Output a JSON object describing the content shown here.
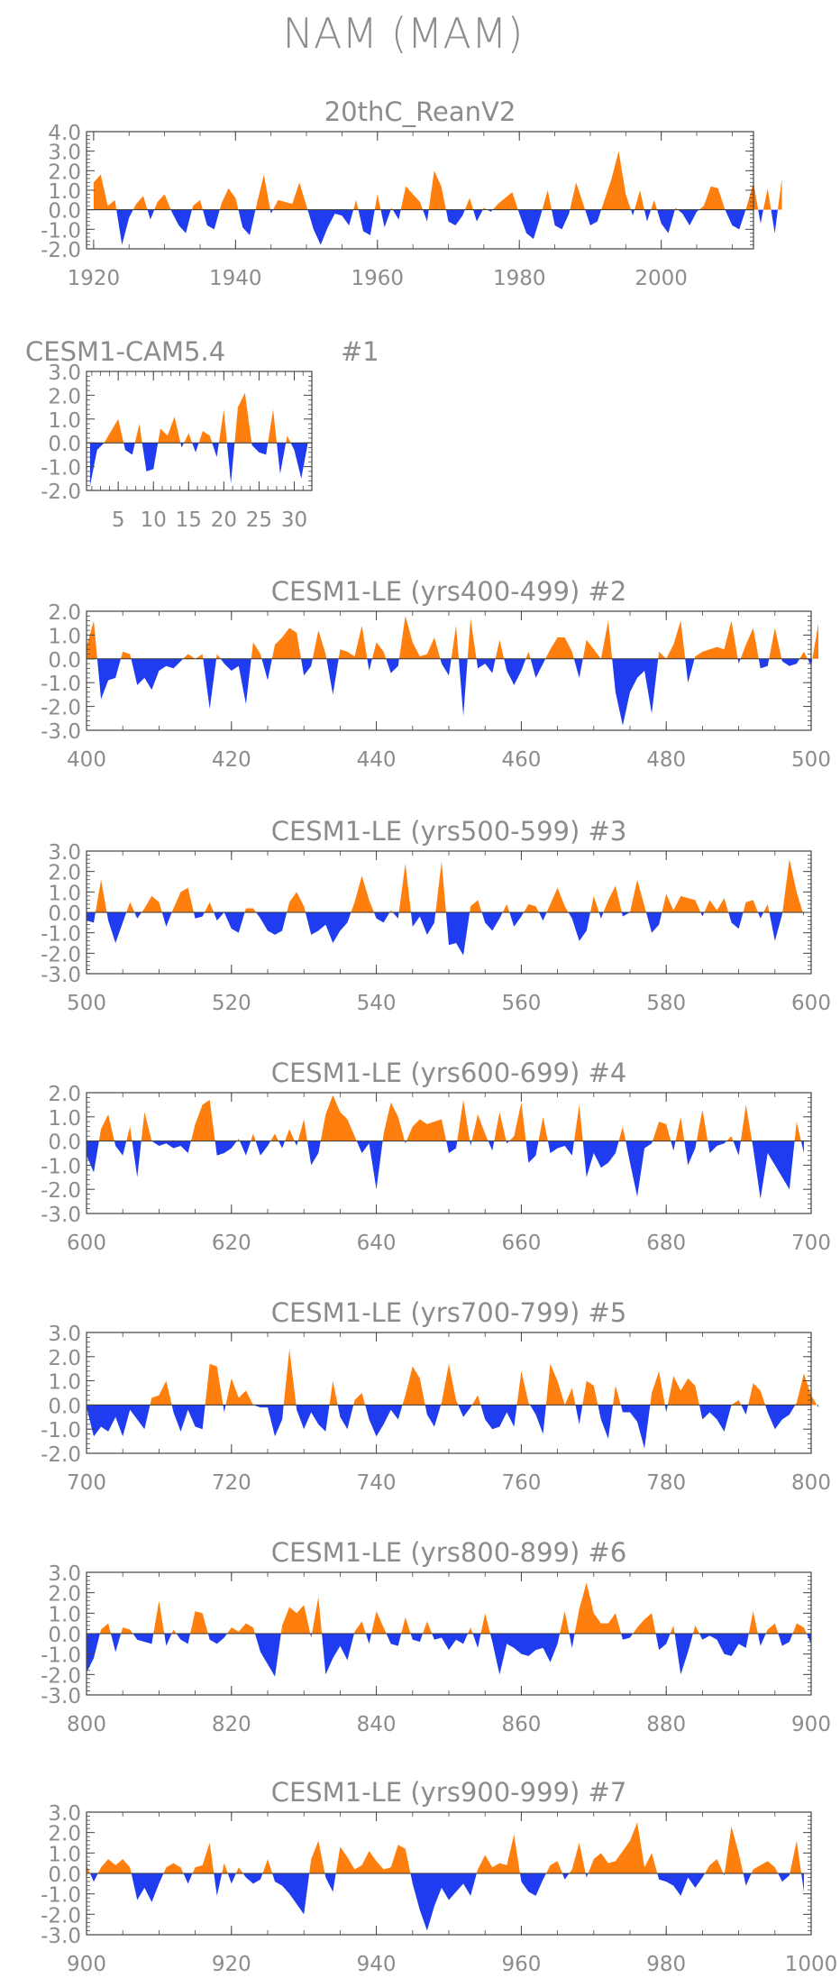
{
  "figure_title": "NAM (MAM)",
  "colors": {
    "positive": "#ff7f0e",
    "negative": "#1f3cf0",
    "axis": "#444444",
    "text": "#8c8c8c"
  },
  "chart_data": [
    {
      "type": "area",
      "title": "20thC_ReanV2",
      "member": "",
      "x_start": 1920,
      "x_end": 2012,
      "xlim": [
        1919,
        2013
      ],
      "ylim": [
        -2.0,
        4.0
      ],
      "xticks": [
        1920,
        1940,
        1960,
        1980,
        2000
      ],
      "yticks": [
        "4.0",
        "3.0",
        "2.0",
        "1.0",
        "0.0",
        "-1.0",
        "-2.0"
      ],
      "values": [
        1.4,
        1.8,
        0.2,
        0.5,
        -1.8,
        -0.4,
        0.3,
        0.7,
        -0.5,
        0.4,
        0.8,
        -0.1,
        -0.8,
        -1.2,
        0.2,
        0.5,
        -0.8,
        -1.0,
        0.3,
        1.1,
        0.6,
        -0.9,
        -1.3,
        0.3,
        1.8,
        -0.2,
        0.5,
        0.4,
        0.3,
        1.4,
        0.2,
        -1.0,
        -1.8,
        -0.9,
        -0.2,
        -0.3,
        -0.8,
        0.5,
        -1.1,
        -1.3,
        0.8,
        -0.9,
        0.1,
        -0.5,
        1.2,
        0.8,
        0.4,
        -0.6,
        2.0,
        1.2,
        -0.6,
        -0.8,
        -0.3,
        0.6,
        -0.6,
        0.1,
        -0.1,
        0.3,
        0.6,
        0.9,
        -0.2,
        -1.2,
        -1.5,
        -0.3,
        1.0,
        -0.8,
        -1.0,
        -0.2,
        1.4,
        0.3,
        -0.8,
        -0.6,
        0.5,
        1.6,
        3.0,
        0.8,
        -0.3,
        1.0,
        -0.6,
        0.5,
        -0.7,
        -1.2,
        0.1,
        -0.2,
        -0.8,
        -0.1,
        0.2,
        1.2,
        1.1,
        0.0,
        -0.8,
        -1.0,
        0.1,
        1.4,
        -0.7,
        1.1,
        -1.2,
        1.6
      ]
    },
    {
      "type": "area",
      "title": "CESM1-CAM5.4",
      "member": "#1",
      "x_start": 1,
      "x_end": 32,
      "xlim": [
        0.5,
        32.5
      ],
      "ylim": [
        -2.0,
        3.0
      ],
      "xticks": [
        5,
        10,
        15,
        20,
        25,
        30
      ],
      "yticks": [
        "3.0",
        "2.0",
        "1.0",
        "0.0",
        "-1.0",
        "-2.0"
      ],
      "values": [
        -1.8,
        -0.3,
        0.0,
        0.5,
        1.0,
        -0.3,
        -0.5,
        0.8,
        -1.2,
        -1.1,
        0.6,
        0.3,
        1.1,
        -0.2,
        0.4,
        -0.4,
        0.5,
        0.3,
        -0.6,
        1.4,
        -1.7,
        1.5,
        2.1,
        -0.1,
        -0.4,
        -0.5,
        1.4,
        -1.3,
        0.3,
        -0.3,
        -1.5,
        0.1
      ]
    },
    {
      "type": "area",
      "title": "CESM1-LE (yrs400-499)",
      "member": "#2",
      "x_start": 400,
      "x_end": 500,
      "xlim": [
        400,
        500
      ],
      "ylim": [
        -3.0,
        2.0
      ],
      "xticks": [
        400,
        420,
        440,
        460,
        480,
        500
      ],
      "yticks": [
        "2.0",
        "1.0",
        "0.0",
        "-1.0",
        "-2.0",
        "-3.0"
      ],
      "values": [
        0.5,
        1.6,
        -1.7,
        -0.9,
        -0.8,
        0.3,
        0.2,
        -1.1,
        -0.8,
        -1.3,
        -0.5,
        -0.3,
        -0.4,
        -0.1,
        0.2,
        0.0,
        0.2,
        -2.1,
        0.2,
        -0.2,
        -0.5,
        -0.3,
        -1.9,
        0.7,
        0.2,
        -0.9,
        0.6,
        0.9,
        1.3,
        1.1,
        -0.7,
        -0.3,
        1.2,
        0.2,
        -1.5,
        0.4,
        0.3,
        0.1,
        1.4,
        -0.5,
        0.7,
        0.3,
        -0.6,
        -0.3,
        1.8,
        0.7,
        0.1,
        0.2,
        0.9,
        -0.2,
        -0.7,
        1.4,
        -2.4,
        1.7,
        -0.4,
        -0.2,
        -0.6,
        0.8,
        -0.5,
        -1.1,
        -0.5,
        0.3,
        -0.8,
        -0.2,
        0.4,
        0.9,
        0.9,
        0.3,
        -0.8,
        0.8,
        0.4,
        0.0,
        1.6,
        -1.4,
        -2.8,
        -1.4,
        -0.8,
        -0.5,
        -2.3,
        0.3,
        0.0,
        0.6,
        1.6,
        -1.0,
        0.1,
        0.3,
        0.4,
        0.5,
        0.4,
        1.6,
        -0.2,
        0.6,
        1.3,
        -0.4,
        -0.3,
        1.3,
        -0.1,
        -0.3,
        -0.2,
        0.3,
        -0.3,
        1.5
      ]
    },
    {
      "type": "area",
      "title": "CESM1-LE (yrs500-599)",
      "member": "#3",
      "x_start": 500,
      "x_end": 600,
      "xlim": [
        500,
        600
      ],
      "ylim": [
        -3.0,
        3.0
      ],
      "xticks": [
        500,
        520,
        540,
        560,
        580,
        600
      ],
      "yticks": [
        "3.0",
        "2.0",
        "1.0",
        "0.0",
        "-1.0",
        "-2.0",
        "-3.0"
      ],
      "values": [
        -0.4,
        -0.5,
        1.6,
        -0.4,
        -1.5,
        -0.5,
        0.5,
        -0.3,
        0.2,
        0.8,
        0.5,
        -0.7,
        0.2,
        1.0,
        1.2,
        -0.3,
        -0.2,
        0.5,
        -0.4,
        0.0,
        -0.8,
        -1.0,
        0.2,
        0.2,
        -0.3,
        -0.9,
        -1.1,
        -0.9,
        0.5,
        1.0,
        0.3,
        -1.1,
        -0.9,
        -0.6,
        -1.5,
        -0.9,
        -0.5,
        0.5,
        1.8,
        0.6,
        -0.3,
        -0.5,
        0.1,
        -0.3,
        2.4,
        -0.7,
        -0.2,
        -1.1,
        -0.5,
        2.5,
        -1.6,
        -1.5,
        -2.1,
        0.3,
        0.6,
        -0.5,
        -0.9,
        -0.3,
        0.4,
        -0.7,
        -0.2,
        0.4,
        0.3,
        -0.4,
        0.4,
        1.2,
        0.3,
        -0.3,
        -1.4,
        -0.9,
        0.8,
        -0.3,
        0.6,
        1.3,
        -0.2,
        0.0,
        1.6,
        0.3,
        -1.0,
        -0.6,
        0.9,
        0.1,
        0.8,
        0.7,
        0.6,
        -0.2,
        0.6,
        0.1,
        0.7,
        -0.5,
        -0.8,
        0.5,
        0.6,
        -0.3,
        0.4,
        -1.4,
        -0.1,
        2.6,
        1.0,
        -0.2
      ]
    },
    {
      "type": "area",
      "title": "CESM1-LE (yrs600-699)",
      "member": "#4",
      "x_start": 600,
      "x_end": 700,
      "xlim": [
        600,
        700
      ],
      "ylim": [
        -3.0,
        2.0
      ],
      "xticks": [
        600,
        620,
        640,
        660,
        680,
        700
      ],
      "yticks": [
        "2.0",
        "1.0",
        "0.0",
        "-1.0",
        "-2.0",
        "-3.0"
      ],
      "values": [
        -0.6,
        -1.3,
        0.5,
        1.1,
        -0.2,
        -0.6,
        0.6,
        -1.5,
        1.2,
        0.0,
        -0.2,
        -0.1,
        -0.3,
        -0.2,
        -0.5,
        0.7,
        1.5,
        1.7,
        -0.6,
        -0.5,
        -0.3,
        0.1,
        -0.6,
        0.3,
        -0.6,
        -0.2,
        0.3,
        -0.3,
        0.5,
        -0.2,
        0.9,
        -1.0,
        -0.5,
        1.1,
        1.9,
        1.2,
        0.9,
        0.2,
        -0.5,
        -0.1,
        -2.0,
        0.3,
        1.6,
        1.0,
        -0.1,
        0.6,
        0.9,
        0.7,
        0.8,
        0.9,
        -0.5,
        -0.3,
        1.7,
        -0.2,
        1.1,
        0.3,
        -0.4,
        1.2,
        -0.1,
        0.2,
        1.6,
        -0.9,
        -0.6,
        1.0,
        -0.5,
        -0.3,
        -0.2,
        -0.6,
        1.5,
        -1.5,
        -0.5,
        -1.1,
        -0.9,
        -0.5,
        0.6,
        -0.9,
        -2.3,
        -0.3,
        -0.1,
        0.8,
        0.7,
        -0.4,
        1.0,
        -1.0,
        -0.3,
        1.3,
        -0.5,
        -0.2,
        -0.1,
        0.2,
        -0.6,
        1.5,
        -0.3,
        -2.4,
        -0.5,
        -1.0,
        -1.5,
        -2.0,
        0.8,
        -0.5
      ]
    },
    {
      "type": "area",
      "title": "CESM1-LE (yrs700-799)",
      "member": "#5",
      "x_start": 700,
      "x_end": 800,
      "xlim": [
        700,
        800
      ],
      "ylim": [
        -2.0,
        3.0
      ],
      "xticks": [
        700,
        720,
        740,
        760,
        780,
        800
      ],
      "yticks": [
        "3.0",
        "2.0",
        "1.0",
        "0.0",
        "-1.0",
        "-2.0"
      ],
      "values": [
        -0.1,
        -1.3,
        -0.9,
        -1.1,
        -0.5,
        -1.3,
        -0.2,
        -0.6,
        -1.0,
        0.3,
        0.4,
        1.0,
        -0.3,
        -1.1,
        -0.2,
        -0.9,
        -1.0,
        1.7,
        1.6,
        -0.3,
        1.1,
        0.3,
        0.6,
        0.0,
        -0.1,
        -0.1,
        -1.3,
        -0.6,
        2.3,
        -0.2,
        -1.0,
        -0.3,
        -0.8,
        -1.1,
        1.0,
        -0.5,
        -1.0,
        0.2,
        0.5,
        -0.6,
        -1.3,
        -0.8,
        -0.2,
        -0.6,
        0.4,
        1.6,
        1.1,
        -0.4,
        -0.9,
        0.1,
        1.7,
        0.2,
        -0.5,
        -0.1,
        0.4,
        -0.6,
        -1.0,
        -0.9,
        -0.3,
        -0.9,
        1.4,
        0.1,
        -0.4,
        -1.2,
        1.7,
        1.0,
        0.0,
        0.7,
        -0.8,
        1.0,
        0.8,
        -0.6,
        -1.4,
        0.8,
        -0.3,
        -0.3,
        -0.7,
        -1.8,
        0.5,
        1.4,
        -0.3,
        1.2,
        0.6,
        1.1,
        0.8,
        -0.6,
        -0.3,
        -0.6,
        -1.1,
        0.0,
        0.2,
        -0.4,
        0.9,
        0.6,
        -0.3,
        -1.0,
        -0.6,
        -0.4,
        0.1,
        1.3,
        0.4,
        -0.1
      ]
    },
    {
      "type": "area",
      "title": "CESM1-LE (yrs800-899)",
      "member": "#6",
      "x_start": 800,
      "x_end": 900,
      "xlim": [
        800,
        900
      ],
      "ylim": [
        -3.0,
        3.0
      ],
      "xticks": [
        800,
        820,
        840,
        860,
        880,
        900
      ],
      "yticks": [
        "3.0",
        "2.0",
        "1.0",
        "0.0",
        "-1.0",
        "-2.0",
        "-3.0"
      ],
      "values": [
        -1.9,
        -1.2,
        0.2,
        0.5,
        -0.9,
        0.3,
        0.2,
        -0.3,
        -0.4,
        -0.5,
        1.6,
        -0.6,
        0.2,
        -0.3,
        -0.5,
        1.1,
        1.0,
        -0.3,
        -0.5,
        -0.2,
        0.3,
        0.1,
        0.5,
        0.3,
        -0.9,
        -1.5,
        -2.1,
        0.4,
        1.3,
        1.0,
        1.4,
        -0.2,
        1.8,
        -2.0,
        -1.2,
        -0.6,
        -1.3,
        0.1,
        0.6,
        -0.5,
        1.1,
        0.3,
        -0.5,
        -0.6,
        0.8,
        -0.3,
        -0.4,
        0.6,
        -0.3,
        -0.2,
        -0.8,
        -0.3,
        -0.5,
        0.3,
        -0.7,
        1.0,
        -0.4,
        -2.0,
        -0.5,
        -0.7,
        -1.0,
        -1.1,
        -0.8,
        -0.7,
        -1.4,
        -0.5,
        1.1,
        -0.7,
        1.2,
        2.5,
        1.0,
        0.5,
        0.5,
        1.0,
        -0.3,
        -0.2,
        0.3,
        0.7,
        1.0,
        -0.8,
        -0.5,
        0.4,
        -2.0,
        -0.9,
        0.4,
        -0.3,
        -0.1,
        -0.3,
        -1.0,
        -1.1,
        -0.5,
        -0.7,
        1.1,
        -0.6,
        0.2,
        0.5,
        -0.6,
        -0.4,
        0.5,
        0.3,
        -0.5
      ]
    },
    {
      "type": "area",
      "title": "CESM1-LE (yrs900-999)",
      "member": "#7",
      "x_start": 900,
      "x_end": 1000,
      "xlim": [
        900,
        1000
      ],
      "ylim": [
        -3.0,
        3.0
      ],
      "xticks": [
        900,
        920,
        940,
        960,
        980,
        1000
      ],
      "yticks": [
        "3.0",
        "2.0",
        "1.0",
        "0.0",
        "-1.0",
        "-2.0",
        "-3.0"
      ],
      "values": [
        0.4,
        -0.4,
        0.3,
        0.7,
        0.4,
        0.7,
        0.3,
        -1.3,
        -0.7,
        -1.4,
        -0.5,
        0.3,
        0.5,
        0.3,
        -0.5,
        0.3,
        0.4,
        1.5,
        -1.1,
        0.5,
        -0.5,
        0.3,
        -0.2,
        -0.5,
        -0.3,
        0.7,
        -0.4,
        -0.6,
        -1.0,
        -1.5,
        -2.0,
        0.7,
        1.6,
        -0.2,
        -0.9,
        1.3,
        0.8,
        0.2,
        0.4,
        1.1,
        0.6,
        0.2,
        0.3,
        1.4,
        1.2,
        -0.5,
        -1.8,
        -2.8,
        -1.6,
        -0.7,
        -1.3,
        -0.9,
        -0.5,
        -1.1,
        0.2,
        0.9,
        0.3,
        0.5,
        0.4,
        1.9,
        -0.4,
        -0.9,
        -1.1,
        -0.3,
        0.4,
        0.6,
        -0.3,
        0.2,
        1.5,
        -0.2,
        0.7,
        1.0,
        0.5,
        0.6,
        1.1,
        1.6,
        2.5,
        0.3,
        1.0,
        -0.3,
        -0.4,
        -0.6,
        -1.1,
        -0.2,
        -0.7,
        -0.2,
        0.4,
        0.7,
        -0.1,
        2.3,
        1.0,
        -0.6,
        0.2,
        0.4,
        0.6,
        0.3,
        -0.4,
        -0.1,
        1.6,
        -0.9
      ]
    }
  ]
}
